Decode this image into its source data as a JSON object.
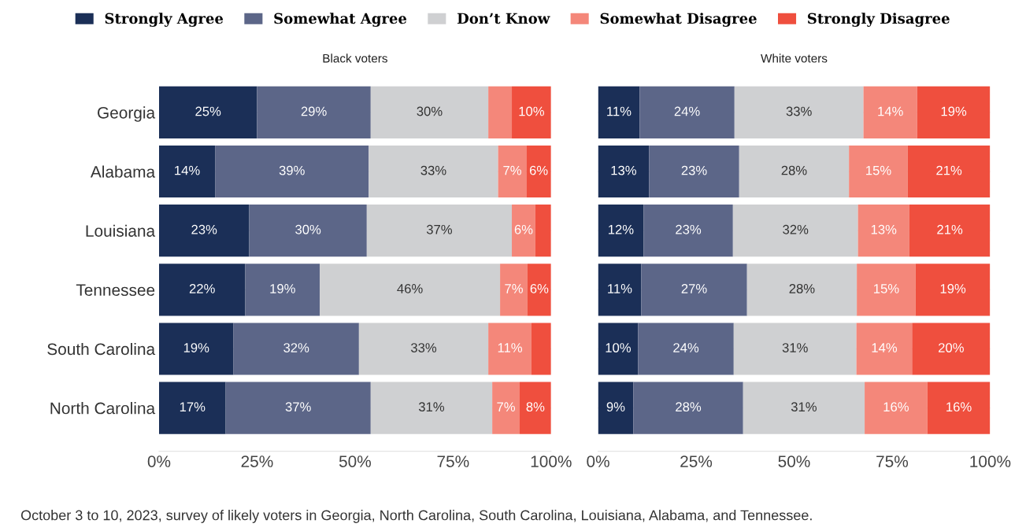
{
  "chart_data": [
    {
      "type": "bar",
      "orientation": "horizontal",
      "stacked": true,
      "title": "Black voters",
      "categories": [
        "Georgia",
        "Alabama",
        "Louisiana",
        "Tennessee",
        "South Carolina",
        "North Carolina"
      ],
      "xlim": [
        0,
        100
      ],
      "xticks": [
        {
          "value": 0,
          "label": "0%"
        },
        {
          "value": 25,
          "label": "25%"
        },
        {
          "value": 50,
          "label": "50%"
        },
        {
          "value": 75,
          "label": "75%"
        },
        {
          "value": 100,
          "label": "100%"
        }
      ],
      "grid": "y",
      "legend": "top",
      "series": [
        {
          "name": "Strongly Agree",
          "color": "#1b2f57",
          "values": [
            25,
            14.3,
            23,
            22,
            19,
            17
          ],
          "value_labels": [
            "25%",
            "14%",
            "23%",
            "22%",
            "19%",
            "17%"
          ]
        },
        {
          "name": "Somewhat Agree",
          "color": "#5c6688",
          "values": [
            29,
            39.2,
            30,
            19,
            32,
            37
          ],
          "value_labels": [
            "29%",
            "39%",
            "30%",
            "19%",
            "32%",
            "37%"
          ]
        },
        {
          "name": "Don’t Know",
          "color": "#cfd0d2",
          "values": [
            30,
            33,
            37,
            46,
            33,
            31
          ],
          "value_labels": [
            "30%",
            "33%",
            "37%",
            "46%",
            "33%",
            "31%"
          ]
        },
        {
          "name": "Somewhat Disagree",
          "color": "#f4877a",
          "values": [
            6,
            7.2,
            6,
            7,
            11,
            7
          ],
          "value_labels": [
            null,
            "7%",
            "6%",
            "7%",
            "11%",
            "7%"
          ]
        },
        {
          "name": "Strongly Disagree",
          "color": "#ef4f3e",
          "values": [
            10,
            6.3,
            4,
            6,
            5,
            8
          ],
          "value_labels": [
            "10%",
            "6%",
            null,
            "6%",
            null,
            "8%"
          ]
        }
      ],
      "annotations": [
        "October 3 to 10, 2023, survey of likely voters in Georgia, North Carolina, South Carolina, Louisiana, Alabama, and Tennessee."
      ]
    },
    {
      "type": "bar",
      "orientation": "horizontal",
      "stacked": true,
      "title": "White voters",
      "categories": [
        null,
        null,
        null,
        null,
        null,
        null
      ],
      "xlim": [
        0,
        100
      ],
      "xticks": [
        {
          "value": 0,
          "label": "0%"
        },
        {
          "value": 25,
          "label": "25%"
        },
        {
          "value": 50,
          "label": "50%"
        },
        {
          "value": 75,
          "label": "75%"
        },
        {
          "value": 100,
          "label": "100%"
        }
      ],
      "grid": "y",
      "tick_labels": "x",
      "series": [
        {
          "color": "#1b2f57",
          "values": [
            10.6,
            13,
            11.6,
            11,
            10.2,
            9
          ],
          "value_labels": [
            "11%",
            "13%",
            "12%",
            "11%",
            "10%",
            "9%"
          ]
        },
        {
          "color": "#5c6688",
          "values": [
            24.2,
            23,
            22.8,
            27,
            24.4,
            28
          ],
          "value_labels": [
            "24%",
            "23%",
            "23%",
            "27%",
            "24%",
            "28%"
          ]
        },
        {
          "color": "#cfd0d2",
          "values": [
            32.9,
            28,
            31.9,
            28,
            31.3,
            31
          ],
          "value_labels": [
            "33%",
            "28%",
            "32%",
            "28%",
            "31%",
            "31%"
          ]
        },
        {
          "color": "#f4877a",
          "values": [
            13.7,
            15,
            13.1,
            15,
            14.2,
            16
          ],
          "value_labels": [
            "14%",
            "15%",
            "13%",
            "15%",
            "14%",
            "16%"
          ]
        },
        {
          "color": "#ef4f3e",
          "values": [
            18.6,
            21,
            20.6,
            19,
            19.9,
            16
          ],
          "value_labels": [
            "19%",
            "21%",
            "21%",
            "19%",
            "20%",
            "16%"
          ]
        }
      ]
    }
  ]
}
